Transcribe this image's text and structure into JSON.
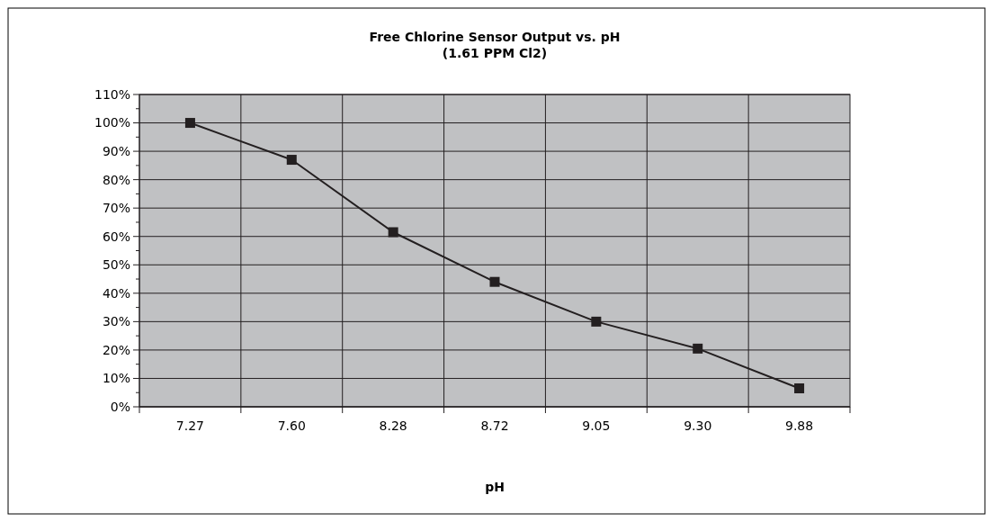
{
  "chart_data": {
    "type": "line",
    "title": "Free Chlorine Sensor Output vs. pH",
    "subtitle": "(1.61 PPM Cl2)",
    "xlabel": "pH",
    "categories": [
      "7.27",
      "7.60",
      "8.28",
      "8.72",
      "9.05",
      "9.30",
      "9.88"
    ],
    "series": [
      {
        "color": "#231f20",
        "values": [
          100,
          87,
          61.5,
          44,
          30,
          20.5,
          6.5
        ]
      }
    ],
    "ylim": [
      0,
      110
    ],
    "yticks": [
      {
        "value": 0,
        "label": "0%"
      },
      {
        "value": 5,
        "label": null
      },
      {
        "value": 10,
        "label": "10%"
      },
      {
        "value": 15,
        "label": null
      },
      {
        "value": 20,
        "label": "20%"
      },
      {
        "value": 25,
        "label": null
      },
      {
        "value": 30,
        "label": "30%"
      },
      {
        "value": 35,
        "label": null
      },
      {
        "value": 40,
        "label": "40%"
      },
      {
        "value": 45,
        "label": null
      },
      {
        "value": 50,
        "label": "50%"
      },
      {
        "value": 55,
        "label": null
      },
      {
        "value": 60,
        "label": "60%"
      },
      {
        "value": 65,
        "label": null
      },
      {
        "value": 70,
        "label": "70%"
      },
      {
        "value": 75,
        "label": null
      },
      {
        "value": 80,
        "label": "80%"
      },
      {
        "value": 85,
        "label": null
      },
      {
        "value": 90,
        "label": "90%"
      },
      {
        "value": 95,
        "label": null
      },
      {
        "value": 100,
        "label": "100%"
      },
      {
        "value": 105,
        "label": null
      },
      {
        "value": 110,
        "label": "110%"
      }
    ],
    "grid": true,
    "marker": "square",
    "line_style": "solid"
  }
}
